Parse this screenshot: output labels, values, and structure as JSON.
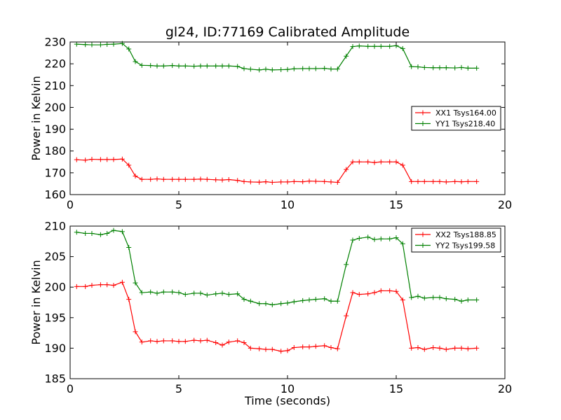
{
  "chart_data": [
    {
      "type": "line",
      "title": "gl24, ID:77169 Calibrated Amplitude",
      "xlabel": "",
      "ylabel": "Power in Kelvin",
      "xlim": [
        0,
        20
      ],
      "ylim": [
        160,
        230
      ],
      "xticks": [
        0,
        5,
        10,
        15,
        20
      ],
      "yticks": [
        160,
        170,
        180,
        190,
        200,
        210,
        220,
        230
      ],
      "grid": false,
      "legend_position": "center-right",
      "x": [
        0.3,
        0.7,
        1.0,
        1.4,
        1.7,
        2.0,
        2.4,
        2.7,
        3.0,
        3.3,
        3.7,
        4.0,
        4.3,
        4.7,
        5.0,
        5.3,
        5.7,
        6.0,
        6.3,
        6.7,
        7.0,
        7.3,
        7.7,
        8.0,
        8.3,
        8.7,
        9.0,
        9.3,
        9.7,
        10.0,
        10.3,
        10.7,
        11.0,
        11.3,
        11.7,
        12.0,
        12.3,
        12.7,
        13.0,
        13.3,
        13.7,
        14.0,
        14.3,
        14.7,
        15.0,
        15.3,
        15.7,
        16.0,
        16.3,
        16.7,
        17.0,
        17.3,
        17.7,
        18.0,
        18.3,
        18.7
      ],
      "series": [
        {
          "name": "XX1 Tsys164.00",
          "color": "#ff0000",
          "values": [
            176.0,
            175.8,
            176.2,
            176.1,
            176.1,
            176.1,
            176.3,
            173.5,
            168.5,
            167.0,
            167.0,
            167.2,
            167.0,
            167.0,
            167.0,
            167.0,
            167.0,
            167.1,
            167.0,
            166.8,
            166.7,
            166.9,
            166.5,
            166.0,
            165.8,
            165.7,
            165.9,
            165.6,
            165.8,
            165.8,
            166.0,
            165.9,
            166.2,
            166.1,
            166.0,
            165.8,
            165.6,
            171.5,
            175.0,
            175.0,
            175.0,
            174.7,
            175.0,
            175.0,
            175.0,
            173.5,
            166.0,
            166.0,
            166.0,
            166.0,
            166.0,
            165.8,
            166.0,
            165.9,
            166.0,
            166.0
          ]
        },
        {
          "name": "YY1 Tsys218.40",
          "color": "#008000",
          "values": [
            229.0,
            228.8,
            228.7,
            228.7,
            228.9,
            229.0,
            229.3,
            226.8,
            221.0,
            219.3,
            219.2,
            219.0,
            219.0,
            219.2,
            219.0,
            219.0,
            218.9,
            219.0,
            219.0,
            219.0,
            219.0,
            219.0,
            218.8,
            217.8,
            217.5,
            217.2,
            217.5,
            217.2,
            217.3,
            217.4,
            217.7,
            217.8,
            217.8,
            217.8,
            217.9,
            217.6,
            217.6,
            223.5,
            227.9,
            228.2,
            228.0,
            228.0,
            228.0,
            228.0,
            228.3,
            227.0,
            218.7,
            218.6,
            218.3,
            218.2,
            218.2,
            218.2,
            218.1,
            218.3,
            218.0,
            218.0
          ]
        }
      ]
    },
    {
      "type": "line",
      "title": "",
      "xlabel": "Time (seconds)",
      "ylabel": "Power in Kelvin",
      "xlim": [
        0,
        20
      ],
      "ylim": [
        185,
        210
      ],
      "xticks": [
        0,
        5,
        10,
        15,
        20
      ],
      "yticks": [
        185,
        190,
        195,
        200,
        205,
        210
      ],
      "grid": false,
      "legend_position": "top-right",
      "x": [
        0.3,
        0.7,
        1.0,
        1.4,
        1.7,
        2.0,
        2.4,
        2.7,
        3.0,
        3.3,
        3.7,
        4.0,
        4.3,
        4.7,
        5.0,
        5.3,
        5.7,
        6.0,
        6.3,
        6.7,
        7.0,
        7.3,
        7.7,
        8.0,
        8.3,
        8.7,
        9.0,
        9.3,
        9.7,
        10.0,
        10.3,
        10.7,
        11.0,
        11.3,
        11.7,
        12.0,
        12.3,
        12.7,
        13.0,
        13.3,
        13.7,
        14.0,
        14.3,
        14.7,
        15.0,
        15.3,
        15.7,
        16.0,
        16.3,
        16.7,
        17.0,
        17.3,
        17.7,
        18.0,
        18.3,
        18.7
      ],
      "series": [
        {
          "name": "XX2 Tsys188.85",
          "color": "#ff0000",
          "values": [
            200.1,
            200.1,
            200.3,
            200.4,
            200.4,
            200.3,
            200.8,
            198.0,
            192.7,
            191.0,
            191.2,
            191.1,
            191.2,
            191.2,
            191.1,
            191.1,
            191.3,
            191.2,
            191.3,
            190.9,
            190.5,
            191.0,
            191.2,
            190.9,
            190.0,
            189.9,
            189.8,
            189.8,
            189.5,
            189.6,
            190.1,
            190.2,
            190.2,
            190.3,
            190.4,
            190.1,
            189.9,
            195.3,
            199.1,
            198.8,
            198.9,
            199.1,
            199.4,
            199.4,
            199.3,
            197.9,
            190.0,
            190.1,
            189.8,
            190.1,
            190.0,
            189.8,
            190.0,
            190.0,
            189.9,
            190.0
          ]
        },
        {
          "name": "YY2 Tsys199.58",
          "color": "#008000",
          "values": [
            209.0,
            208.8,
            208.8,
            208.6,
            208.8,
            209.3,
            209.1,
            206.5,
            200.7,
            199.1,
            199.2,
            199.0,
            199.2,
            199.2,
            199.1,
            198.8,
            199.0,
            199.0,
            198.7,
            198.9,
            199.0,
            198.8,
            198.9,
            198.0,
            197.7,
            197.3,
            197.3,
            197.1,
            197.3,
            197.4,
            197.6,
            197.8,
            197.9,
            198.0,
            198.1,
            197.7,
            197.7,
            203.7,
            207.7,
            208.0,
            208.2,
            207.8,
            207.9,
            207.9,
            208.1,
            207.1,
            198.3,
            198.5,
            198.2,
            198.3,
            198.3,
            198.1,
            198.0,
            197.7,
            197.9,
            197.9
          ]
        }
      ]
    }
  ]
}
